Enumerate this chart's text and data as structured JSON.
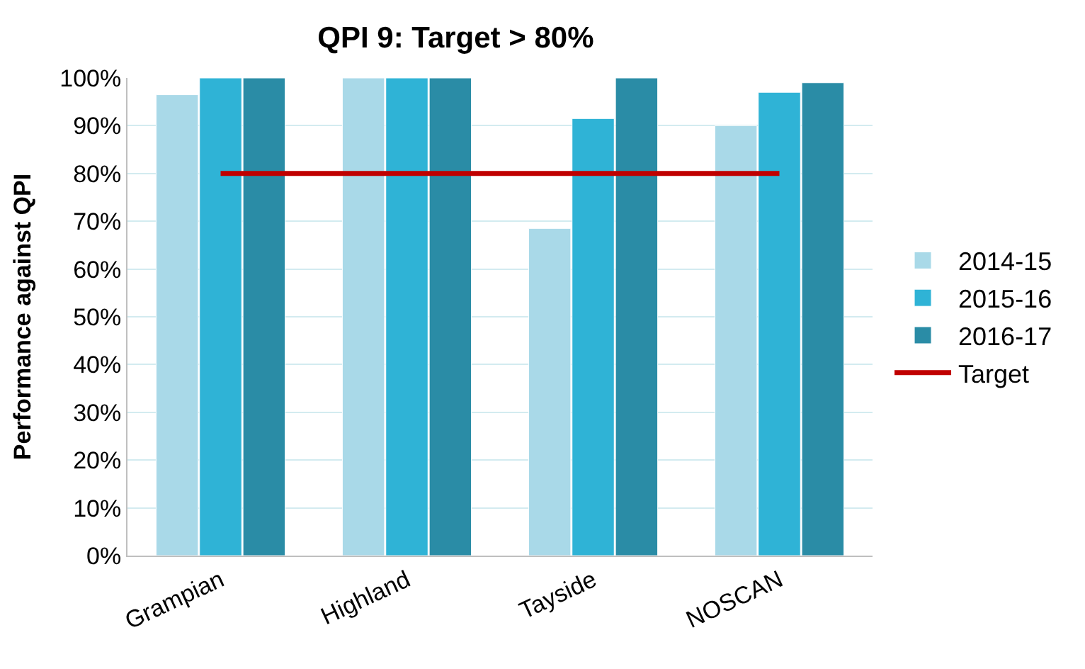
{
  "chart_data": {
    "type": "bar",
    "title": "QPI 9: Target > 80%",
    "ylabel": "Performance against QPI",
    "categories": [
      "Grampian",
      "Highland",
      "Tayside",
      "NOSCAN"
    ],
    "series": [
      {
        "name": "2014-15",
        "color": "#a9d9e8",
        "values": [
          96.5,
          100,
          68.5,
          90
        ]
      },
      {
        "name": "2015-16",
        "color": "#2fb3d6",
        "values": [
          100,
          100,
          91.5,
          97
        ]
      },
      {
        "name": "2016-17",
        "color": "#2a8ca6",
        "values": [
          100,
          100,
          100,
          99
        ]
      },
      {
        "name": "Target",
        "type": "line",
        "color": "#c00000",
        "values": [
          80,
          80,
          80,
          80
        ],
        "marker": "none"
      }
    ],
    "ylim": [
      0,
      100
    ],
    "yticks": [
      {
        "value": 0,
        "label": "0%"
      },
      {
        "value": 10,
        "label": "10%"
      },
      {
        "value": 20,
        "label": "20%"
      },
      {
        "value": 30,
        "label": "30%"
      },
      {
        "value": 40,
        "label": "40%"
      },
      {
        "value": 50,
        "label": "50%"
      },
      {
        "value": 60,
        "label": "60%"
      },
      {
        "value": 70,
        "label": "70%"
      },
      {
        "value": 80,
        "label": "80%"
      },
      {
        "value": 90,
        "label": "90%"
      },
      {
        "value": 100,
        "label": "100%"
      }
    ],
    "grid": "y",
    "legend": "right"
  }
}
